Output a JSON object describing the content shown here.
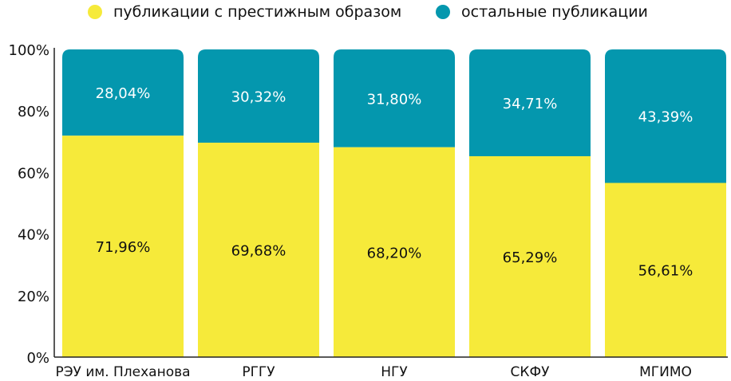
{
  "legend": {
    "prestige_label": "публикации с престижным образом",
    "other_label": "остальные публикации"
  },
  "colors": {
    "prestige": "#F6EA3A",
    "other": "#0497AE",
    "axis": "#222222"
  },
  "chart_data": {
    "type": "bar",
    "stacked": true,
    "categories": [
      "РЭУ им. Плеханова",
      "РГГУ",
      "НГУ",
      "СКФУ",
      "МГИМО"
    ],
    "series": [
      {
        "name": "публикации с престижным образом",
        "values": [
          71.96,
          69.68,
          68.2,
          65.29,
          56.61
        ],
        "labels": [
          "71,96%",
          "69,68%",
          "68,20%",
          "65,29%",
          "56,61%"
        ]
      },
      {
        "name": "остальные публикации",
        "values": [
          28.04,
          30.32,
          31.8,
          34.71,
          43.39
        ],
        "labels": [
          "28,04%",
          "30,32%",
          "31,80%",
          "34,71%",
          "43,39%"
        ]
      }
    ],
    "y_ticks": [
      "0%",
      "20%",
      "40%",
      "60%",
      "80%",
      "100%"
    ],
    "ylim": [
      0,
      100
    ],
    "legend_position": "top",
    "grid": false
  }
}
